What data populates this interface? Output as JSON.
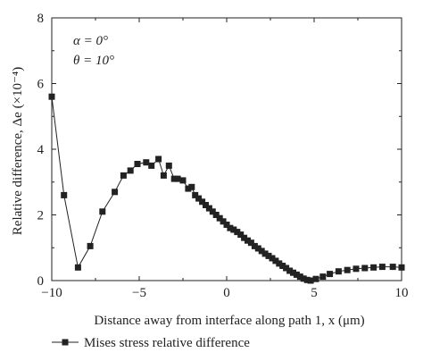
{
  "chart_data": {
    "type": "line",
    "xlabel": "Distance away from interface along path 1, x (μm)",
    "ylabel": "Relative difference, Δe (×10⁻⁴)",
    "xlim": [
      -10,
      10
    ],
    "ylim": [
      0,
      8
    ],
    "xticks": [
      -10,
      -5,
      0,
      5,
      10
    ],
    "yticks": [
      0,
      2,
      4,
      6,
      8
    ],
    "grid": false,
    "legend_position": "bottom-left",
    "annotations": [
      "α = 0°",
      "θ = 10°"
    ],
    "series": [
      {
        "name": "Mises stress relative difference",
        "marker": "square",
        "color": "#222222",
        "x": [
          -10,
          -9.3,
          -8.5,
          -7.8,
          -7.1,
          -6.4,
          -5.9,
          -5.5,
          -5.1,
          -4.6,
          -4.3,
          -3.9,
          -3.6,
          -3.3,
          -3.0,
          -2.8,
          -2.5,
          -2.2,
          -2.0,
          -1.8,
          -1.6,
          -1.4,
          -1.2,
          -1.0,
          -0.8,
          -0.6,
          -0.4,
          -0.2,
          0.0,
          0.2,
          0.4,
          0.6,
          0.8,
          1.0,
          1.2,
          1.4,
          1.6,
          1.8,
          2.0,
          2.2,
          2.4,
          2.6,
          2.8,
          3.0,
          3.2,
          3.4,
          3.6,
          3.8,
          4.0,
          4.2,
          4.4,
          4.6,
          4.8,
          5.1,
          5.5,
          5.9,
          6.4,
          6.9,
          7.4,
          7.9,
          8.4,
          8.9,
          9.5,
          10.0
        ],
        "y": [
          5.6,
          2.6,
          0.4,
          1.05,
          2.1,
          2.7,
          3.2,
          3.35,
          3.55,
          3.6,
          3.5,
          3.7,
          3.2,
          3.5,
          3.1,
          3.1,
          3.05,
          2.8,
          2.85,
          2.6,
          2.5,
          2.4,
          2.3,
          2.2,
          2.1,
          2.0,
          1.9,
          1.8,
          1.7,
          1.6,
          1.55,
          1.48,
          1.4,
          1.3,
          1.22,
          1.15,
          1.05,
          0.98,
          0.9,
          0.82,
          0.75,
          0.68,
          0.6,
          0.52,
          0.45,
          0.38,
          0.3,
          0.24,
          0.18,
          0.12,
          0.06,
          0.02,
          0.0,
          0.05,
          0.12,
          0.2,
          0.28,
          0.32,
          0.36,
          0.38,
          0.4,
          0.42,
          0.42,
          0.4
        ]
      }
    ]
  }
}
